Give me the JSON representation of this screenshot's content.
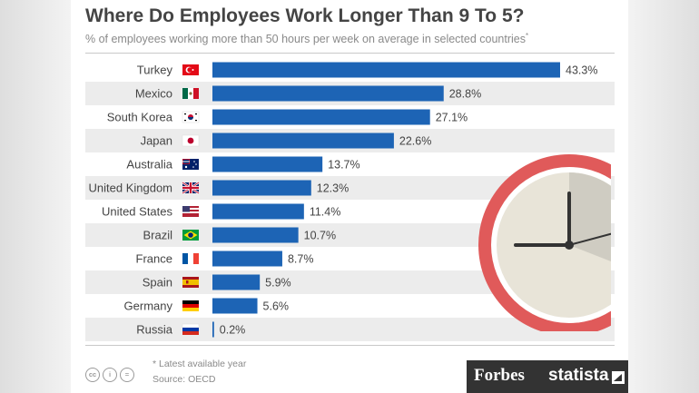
{
  "header": {
    "title": "Where Do Employees Work Longer Than 9 To 5?",
    "subtitle": "% of employees working more than 50 hours per week on average in selected countries",
    "subtitle_marker": "*"
  },
  "footer": {
    "note": "* Latest available year",
    "source": "Source: OECD",
    "license_icons": [
      "cc-icon",
      "by-icon",
      "equals-icon"
    ],
    "brand_forbes": "Forbes",
    "brand_statista": "statista"
  },
  "colors": {
    "bar": "#1d64b5",
    "stripe": "#ececec",
    "text": "#444444",
    "clock_rim": "#e05a5a",
    "clock_face": "#e8e4d8",
    "clock_shade": "#cfccc2"
  },
  "chart_data": {
    "type": "bar",
    "orientation": "horizontal",
    "categories": [
      "Turkey",
      "Mexico",
      "South Korea",
      "Japan",
      "Australia",
      "United Kingdom",
      "United States",
      "Brazil",
      "France",
      "Spain",
      "Germany",
      "Russia"
    ],
    "values": [
      43.3,
      28.8,
      27.1,
      22.6,
      13.7,
      12.3,
      11.4,
      10.7,
      8.7,
      5.9,
      5.6,
      0.2
    ],
    "value_labels": [
      "43.3%",
      "28.8%",
      "27.1%",
      "22.6%",
      "13.7%",
      "12.3%",
      "11.4%",
      "10.7%",
      "8.7%",
      "5.9%",
      "5.6%",
      "0.2%"
    ],
    "flags": [
      "turkey-flag-icon",
      "mexico-flag-icon",
      "south-korea-flag-icon",
      "japan-flag-icon",
      "australia-flag-icon",
      "united-kingdom-flag-icon",
      "united-states-flag-icon",
      "brazil-flag-icon",
      "france-flag-icon",
      "spain-flag-icon",
      "germany-flag-icon",
      "russia-flag-icon"
    ],
    "unit": "%",
    "xlim": [
      0,
      43.3
    ],
    "grid": false,
    "legend": "none"
  }
}
